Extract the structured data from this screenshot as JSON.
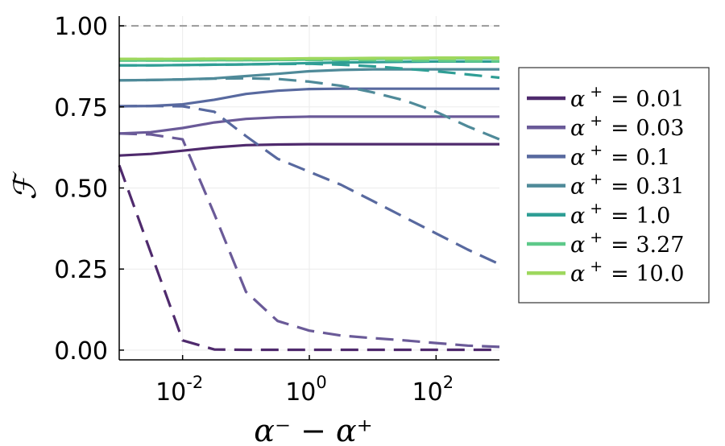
{
  "chart_data": {
    "type": "line",
    "title": "",
    "xlabel": "α⁻ − α⁺",
    "ylabel": "ℱ",
    "x_scale": "log10",
    "xlim": [
      0.001,
      1000
    ],
    "ylim": [
      -0.03,
      1.03
    ],
    "x_ticks": [
      {
        "value": 0.01,
        "base": "10",
        "exp": "-2"
      },
      {
        "value": 1,
        "base": "10",
        "exp": "0"
      },
      {
        "value": 100,
        "base": "10",
        "exp": "2"
      }
    ],
    "y_ticks": [
      {
        "value": 0.0,
        "label": "0.00"
      },
      {
        "value": 0.25,
        "label": "0.25"
      },
      {
        "value": 0.5,
        "label": "0.50"
      },
      {
        "value": 0.75,
        "label": "0.75"
      },
      {
        "value": 1.0,
        "label": "1.00"
      }
    ],
    "reference_line": {
      "y": 1.0,
      "style": "dashed",
      "color": "#999999"
    },
    "grid": true,
    "legend_position": "right",
    "x": [
      0.001,
      0.00316,
      0.01,
      0.0316,
      0.1,
      0.316,
      1,
      3.16,
      10,
      31.6,
      100,
      316,
      1000
    ],
    "series": [
      {
        "name": "α⁺ = 0.01",
        "legend_prefix": "α",
        "legend_sup": "+",
        "legend_value": "= 0.01",
        "color": "#4f2a6d",
        "solid": [
          0.6,
          0.605,
          0.615,
          0.625,
          0.632,
          0.634,
          0.635,
          0.635,
          0.635,
          0.635,
          0.635,
          0.635,
          0.635
        ],
        "dashed": [
          0.57,
          0.3,
          0.03,
          0.002,
          0.001,
          0.001,
          0.001,
          0.001,
          0.001,
          0.001,
          0.001,
          0.001,
          0.001
        ]
      },
      {
        "name": "α⁺ = 0.03",
        "legend_prefix": "α",
        "legend_sup": "+",
        "legend_value": "= 0.03",
        "color": "#6a5a98",
        "solid": [
          0.668,
          0.672,
          0.685,
          0.702,
          0.713,
          0.718,
          0.72,
          0.72,
          0.72,
          0.72,
          0.72,
          0.72,
          0.72
        ],
        "dashed": [
          0.668,
          0.665,
          0.65,
          0.42,
          0.18,
          0.09,
          0.06,
          0.045,
          0.037,
          0.03,
          0.022,
          0.014,
          0.01
        ]
      },
      {
        "name": "α⁺ = 0.1",
        "legend_prefix": "α",
        "legend_sup": "+",
        "legend_value": "= 0.1",
        "color": "#58699f",
        "solid": [
          0.752,
          0.753,
          0.758,
          0.772,
          0.79,
          0.8,
          0.805,
          0.806,
          0.806,
          0.806,
          0.806,
          0.806,
          0.806
        ],
        "dashed": [
          0.752,
          0.753,
          0.752,
          0.735,
          0.66,
          0.59,
          0.55,
          0.51,
          0.46,
          0.41,
          0.36,
          0.31,
          0.265
        ]
      },
      {
        "name": "α⁺ = 0.31",
        "legend_prefix": "α",
        "legend_sup": "+",
        "legend_value": "= 0.31",
        "color": "#4f8a99",
        "solid": [
          0.832,
          0.833,
          0.835,
          0.838,
          0.845,
          0.852,
          0.86,
          0.864,
          0.866,
          0.866,
          0.866,
          0.866,
          0.866
        ],
        "dashed": [
          0.832,
          0.833,
          0.835,
          0.837,
          0.838,
          0.836,
          0.828,
          0.815,
          0.795,
          0.77,
          0.735,
          0.69,
          0.65
        ]
      },
      {
        "name": "α⁺ = 1.0",
        "legend_prefix": "α",
        "legend_sup": "+",
        "legend_value": "= 1.0",
        "color": "#2f9e95",
        "solid": [
          0.878,
          0.878,
          0.879,
          0.88,
          0.881,
          0.883,
          0.885,
          0.887,
          0.888,
          0.889,
          0.89,
          0.89,
          0.89
        ],
        "dashed": [
          0.878,
          0.878,
          0.879,
          0.88,
          0.881,
          0.882,
          0.883,
          0.88,
          0.875,
          0.868,
          0.86,
          0.85,
          0.84
        ]
      },
      {
        "name": "α⁺ = 3.27",
        "legend_prefix": "α",
        "legend_sup": "+",
        "legend_value": "= 3.27",
        "color": "#5ec98a",
        "solid": [
          0.893,
          0.893,
          0.893,
          0.894,
          0.894,
          0.895,
          0.896,
          0.897,
          0.898,
          0.899,
          0.9,
          0.9,
          0.9
        ],
        "dashed": [
          0.893,
          0.893,
          0.893,
          0.894,
          0.894,
          0.895,
          0.895,
          0.895,
          0.894,
          0.893,
          0.892,
          0.891,
          0.89
        ]
      },
      {
        "name": "α⁺ = 10.0",
        "legend_prefix": "α",
        "legend_sup": "+",
        "legend_value": "= 10.0",
        "color": "#9ed85e",
        "solid": [
          0.898,
          0.898,
          0.898,
          0.899,
          0.899,
          0.899,
          0.9,
          0.9,
          0.901,
          0.901,
          0.902,
          0.902,
          0.902
        ],
        "dashed": [
          0.898,
          0.898,
          0.898,
          0.898,
          0.898,
          0.898,
          0.899,
          0.899,
          0.899,
          0.899,
          0.899,
          0.899,
          0.899
        ]
      }
    ]
  }
}
